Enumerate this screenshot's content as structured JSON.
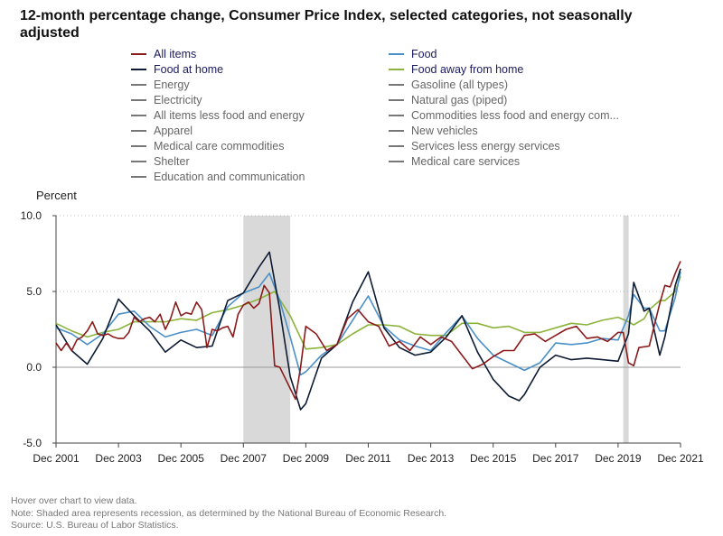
{
  "title": "12-month percentage change, Consumer Price Index, selected categories, not seasonally adjusted",
  "legend": [
    {
      "label": "All items",
      "color": "#8b1a1a",
      "active": true
    },
    {
      "label": "Food",
      "color": "#4a8fc7",
      "active": true
    },
    {
      "label": "Food at home",
      "color": "#0d1b33",
      "active": true
    },
    {
      "label": "Food away from home",
      "color": "#8cb33b",
      "active": true
    },
    {
      "label": "Energy",
      "color": "#777777",
      "active": false
    },
    {
      "label": "Gasoline (all types)",
      "color": "#777777",
      "active": false
    },
    {
      "label": "Electricity",
      "color": "#777777",
      "active": false
    },
    {
      "label": "Natural gas (piped)",
      "color": "#777777",
      "active": false
    },
    {
      "label": "All items less food and energy",
      "color": "#777777",
      "active": false
    },
    {
      "label": "Commodities less food and energy com...",
      "color": "#777777",
      "active": false
    },
    {
      "label": "Apparel",
      "color": "#777777",
      "active": false
    },
    {
      "label": "New vehicles",
      "color": "#777777",
      "active": false
    },
    {
      "label": "Medical care commodities",
      "color": "#777777",
      "active": false
    },
    {
      "label": "Services less energy services",
      "color": "#777777",
      "active": false
    },
    {
      "label": "Shelter",
      "color": "#777777",
      "active": false
    },
    {
      "label": "Medical care services",
      "color": "#777777",
      "active": false
    },
    {
      "label": "Education and communication",
      "color": "#777777",
      "active": false
    }
  ],
  "footer": {
    "hover": "Hover over chart to view data.",
    "note": "Note: Shaded area represents recession, as determined by the National Bureau of Economic Research.",
    "source": "Source: U.S. Bureau of Labor Statistics."
  },
  "chart_data": {
    "type": "line",
    "title": "12-month percentage change, Consumer Price Index, selected categories, not seasonally adjusted",
    "ylabel": "Percent",
    "xlabel": "",
    "ylim": [
      -5.0,
      10.0
    ],
    "yticks": [
      "10.0",
      "5.0",
      "0.0",
      "-5.0"
    ],
    "ytick_values": [
      10,
      5,
      0,
      -5
    ],
    "xlim": [
      2001.917,
      2021.917
    ],
    "xticks": [
      "Dec 2001",
      "Dec 2003",
      "Dec 2005",
      "Dec 2007",
      "Dec 2009",
      "Dec 2011",
      "Dec 2013",
      "Dec 2015",
      "Dec 2017",
      "Dec 2019",
      "Dec 2021"
    ],
    "xtick_values": [
      2001.917,
      2003.917,
      2005.917,
      2007.917,
      2009.917,
      2011.917,
      2013.917,
      2015.917,
      2017.917,
      2019.917,
      2021.917
    ],
    "recessions": [
      [
        2007.917,
        2009.417
      ],
      [
        2020.083,
        2020.25
      ]
    ],
    "series": [
      {
        "name": "All items",
        "color": "#8b1a1a",
        "x": [
          2001.917,
          2002.083,
          2002.25,
          2002.417,
          2002.583,
          2002.75,
          2002.917,
          2003.083,
          2003.25,
          2003.417,
          2003.583,
          2003.75,
          2003.917,
          2004.083,
          2004.25,
          2004.417,
          2004.583,
          2004.75,
          2004.917,
          2005.083,
          2005.25,
          2005.417,
          2005.583,
          2005.75,
          2005.917,
          2006.083,
          2006.25,
          2006.417,
          2006.583,
          2006.75,
          2006.917,
          2007.083,
          2007.25,
          2007.417,
          2007.583,
          2007.75,
          2007.917,
          2008.083,
          2008.25,
          2008.417,
          2008.583,
          2008.75,
          2008.917,
          2009.083,
          2009.25,
          2009.417,
          2009.583,
          2009.75,
          2009.917,
          2010.25,
          2010.583,
          2010.917,
          2011.25,
          2011.583,
          2011.917,
          2012.25,
          2012.583,
          2012.917,
          2013.25,
          2013.583,
          2013.917,
          2014.25,
          2014.583,
          2014.917,
          2015.25,
          2015.583,
          2015.917,
          2016.25,
          2016.583,
          2016.917,
          2017.25,
          2017.583,
          2017.917,
          2018.25,
          2018.583,
          2018.917,
          2019.25,
          2019.583,
          2019.917,
          2020.083,
          2020.25,
          2020.417,
          2020.583,
          2020.917,
          2021.25,
          2021.417,
          2021.583,
          2021.75,
          2021.917
        ],
        "values": [
          1.6,
          1.1,
          1.6,
          1.1,
          1.8,
          2.0,
          2.4,
          3.0,
          2.2,
          2.1,
          2.2,
          2.0,
          1.9,
          1.9,
          2.3,
          3.3,
          3.0,
          3.2,
          3.3,
          3.0,
          3.5,
          2.5,
          3.2,
          4.3,
          3.4,
          3.6,
          3.5,
          4.3,
          3.8,
          1.3,
          2.5,
          2.4,
          2.6,
          2.7,
          2.0,
          3.5,
          4.1,
          4.3,
          3.9,
          4.2,
          5.4,
          4.9,
          0.1,
          0.0,
          -0.7,
          -1.4,
          -2.1,
          0.0,
          2.7,
          2.2,
          1.1,
          1.5,
          3.2,
          3.8,
          3.0,
          2.7,
          1.4,
          1.7,
          1.1,
          2.0,
          1.5,
          2.0,
          1.7,
          0.8,
          -0.1,
          0.2,
          0.7,
          1.1,
          1.1,
          2.1,
          2.2,
          1.7,
          2.1,
          2.5,
          2.7,
          1.9,
          2.0,
          1.7,
          2.3,
          2.3,
          0.3,
          0.1,
          1.3,
          1.4,
          4.2,
          5.4,
          5.3,
          6.2,
          7.0
        ]
      },
      {
        "name": "Food",
        "color": "#4a8fc7",
        "x": [
          2001.917,
          2002.417,
          2002.917,
          2003.417,
          2003.917,
          2004.417,
          2004.917,
          2005.417,
          2005.917,
          2006.417,
          2006.917,
          2007.417,
          2007.917,
          2008.417,
          2008.75,
          2009.083,
          2009.417,
          2009.75,
          2009.917,
          2010.417,
          2010.917,
          2011.417,
          2011.917,
          2012.417,
          2012.917,
          2013.417,
          2013.917,
          2014.417,
          2014.917,
          2015.417,
          2015.917,
          2016.417,
          2016.917,
          2017.417,
          2017.917,
          2018.417,
          2018.917,
          2019.417,
          2019.917,
          2020.25,
          2020.417,
          2020.75,
          2020.917,
          2021.25,
          2021.417,
          2021.75,
          2021.917
        ],
        "values": [
          2.6,
          2.2,
          1.5,
          2.2,
          3.5,
          3.7,
          2.7,
          2.0,
          2.3,
          2.5,
          2.1,
          4.0,
          4.9,
          5.3,
          6.2,
          4.4,
          2.0,
          -0.5,
          -0.3,
          0.8,
          1.5,
          3.1,
          4.7,
          2.7,
          1.8,
          1.4,
          1.1,
          2.3,
          3.4,
          1.9,
          0.8,
          0.3,
          -0.2,
          0.3,
          1.6,
          1.5,
          1.6,
          1.9,
          1.8,
          3.4,
          4.8,
          3.9,
          3.9,
          2.4,
          2.4,
          4.6,
          6.3
        ]
      },
      {
        "name": "Food at home",
        "color": "#0d1b33",
        "x": [
          2001.917,
          2002.417,
          2002.917,
          2003.417,
          2003.917,
          2004.417,
          2004.917,
          2005.417,
          2005.917,
          2006.417,
          2006.917,
          2007.417,
          2007.917,
          2008.417,
          2008.75,
          2009.083,
          2009.417,
          2009.75,
          2009.917,
          2010.417,
          2010.917,
          2011.417,
          2011.917,
          2012.417,
          2012.917,
          2013.417,
          2013.917,
          2014.417,
          2014.917,
          2015.417,
          2015.917,
          2016.417,
          2016.75,
          2016.917,
          2017.417,
          2017.917,
          2018.417,
          2018.917,
          2019.417,
          2019.917,
          2020.25,
          2020.417,
          2020.75,
          2020.917,
          2021.25,
          2021.417,
          2021.75,
          2021.917
        ],
        "values": [
          2.8,
          1.1,
          0.2,
          1.9,
          4.5,
          3.4,
          2.4,
          1.0,
          1.8,
          1.3,
          1.4,
          4.4,
          4.9,
          6.6,
          7.6,
          3.8,
          -0.6,
          -2.8,
          -2.4,
          0.6,
          1.5,
          4.3,
          6.3,
          2.6,
          1.3,
          0.8,
          1.0,
          2.0,
          3.4,
          1.0,
          -0.8,
          -1.9,
          -2.2,
          -1.8,
          0.0,
          0.8,
          0.5,
          0.6,
          0.5,
          0.4,
          2.2,
          5.6,
          3.7,
          3.9,
          0.8,
          2.0,
          5.4,
          6.5
        ]
      },
      {
        "name": "Food away from home",
        "color": "#8cb33b",
        "x": [
          2001.917,
          2002.417,
          2002.917,
          2003.417,
          2003.917,
          2004.417,
          2004.917,
          2005.417,
          2005.917,
          2006.417,
          2006.917,
          2007.417,
          2007.917,
          2008.417,
          2008.917,
          2009.417,
          2009.917,
          2010.417,
          2010.917,
          2011.417,
          2011.917,
          2012.417,
          2012.917,
          2013.417,
          2013.917,
          2014.417,
          2014.917,
          2015.417,
          2015.917,
          2016.417,
          2016.917,
          2017.417,
          2017.917,
          2018.417,
          2018.917,
          2019.417,
          2019.917,
          2020.25,
          2020.417,
          2020.75,
          2020.917,
          2021.25,
          2021.417,
          2021.75,
          2021.917
        ],
        "values": [
          2.9,
          2.4,
          2.0,
          2.3,
          2.5,
          3.0,
          3.0,
          3.0,
          3.2,
          3.1,
          3.6,
          3.8,
          4.1,
          4.5,
          5.0,
          3.4,
          1.2,
          1.3,
          1.5,
          2.2,
          2.8,
          2.8,
          2.7,
          2.2,
          2.1,
          2.1,
          2.9,
          2.9,
          2.6,
          2.7,
          2.3,
          2.3,
          2.6,
          2.9,
          2.8,
          3.1,
          3.3,
          3.0,
          2.8,
          3.2,
          3.8,
          4.4,
          4.4,
          5.0,
          6.0
        ]
      }
    ]
  }
}
